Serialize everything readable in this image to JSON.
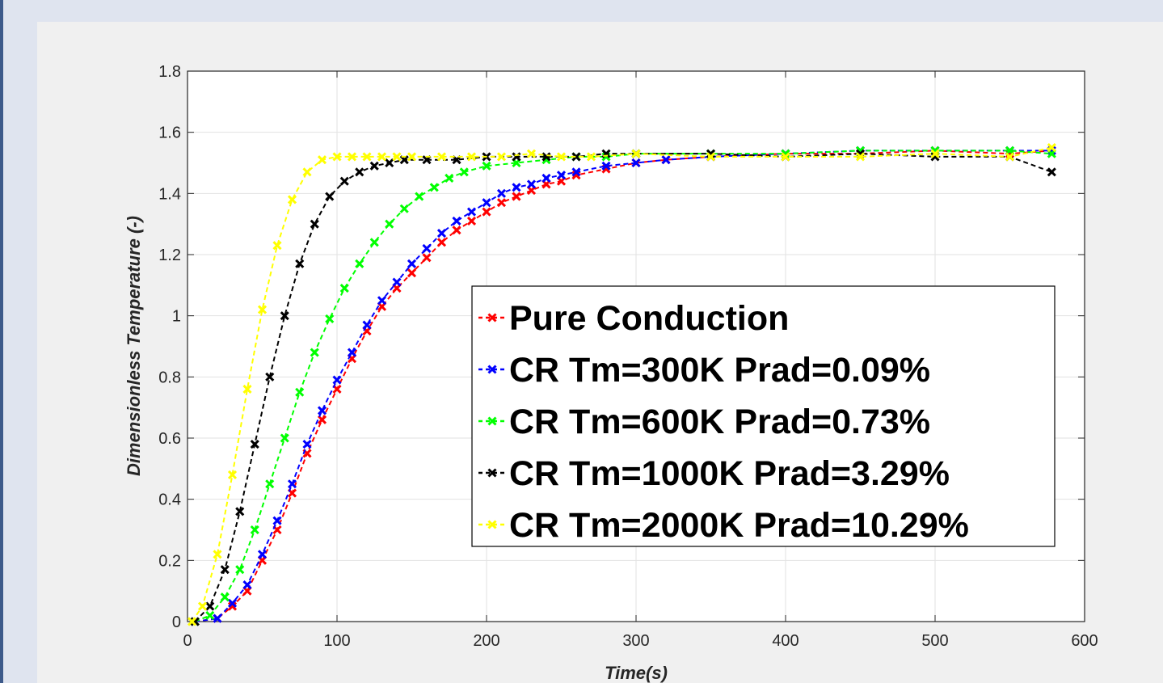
{
  "window": {
    "background": "#dfe4ef",
    "figure_background": "#f0f0f0"
  },
  "chart_data": {
    "type": "scatter",
    "title": "",
    "xlabel": "Time(s)",
    "ylabel": "Dimensionless Temperature (-)",
    "xlim": [
      0,
      600
    ],
    "ylim": [
      0,
      1.8
    ],
    "xticks": [
      "0",
      "100",
      "200",
      "300",
      "400",
      "500",
      "600"
    ],
    "yticks": [
      "0",
      "0.2",
      "0.4",
      "0.6",
      "0.8",
      "1",
      "1.2",
      "1.4",
      "1.6",
      "1.8"
    ],
    "xtick_values": [
      0,
      100,
      200,
      300,
      400,
      500,
      600
    ],
    "ytick_values": [
      0,
      0.2,
      0.4,
      0.6,
      0.8,
      1,
      1.2,
      1.4,
      1.6,
      1.8
    ],
    "grid": true,
    "legend_position": "lower-right",
    "marker": "x",
    "series": [
      {
        "name": "Pure Conduction",
        "color": "#ff0000",
        "x": [
          5,
          20,
          30,
          40,
          50,
          60,
          70,
          80,
          90,
          100,
          110,
          120,
          130,
          140,
          150,
          160,
          170,
          180,
          190,
          200,
          210,
          220,
          230,
          240,
          250,
          260,
          280,
          300,
          320,
          350,
          400,
          450,
          500,
          550,
          578
        ],
        "y": [
          0,
          0.01,
          0.05,
          0.1,
          0.2,
          0.3,
          0.42,
          0.55,
          0.66,
          0.76,
          0.86,
          0.95,
          1.03,
          1.09,
          1.14,
          1.19,
          1.24,
          1.28,
          1.31,
          1.34,
          1.37,
          1.39,
          1.41,
          1.43,
          1.44,
          1.46,
          1.48,
          1.5,
          1.51,
          1.52,
          1.53,
          1.53,
          1.54,
          1.53,
          1.54
        ]
      },
      {
        "name": "CR Tm=300K Prad=0.09%",
        "color": "#0000ff",
        "x": [
          5,
          20,
          30,
          40,
          50,
          60,
          70,
          80,
          90,
          100,
          110,
          120,
          130,
          140,
          150,
          160,
          170,
          180,
          190,
          200,
          210,
          220,
          230,
          240,
          250,
          260,
          280,
          300,
          320,
          350,
          400,
          450,
          500,
          550,
          578
        ],
        "y": [
          0,
          0.01,
          0.06,
          0.12,
          0.22,
          0.33,
          0.45,
          0.58,
          0.69,
          0.79,
          0.88,
          0.97,
          1.05,
          1.11,
          1.17,
          1.22,
          1.27,
          1.31,
          1.34,
          1.37,
          1.4,
          1.42,
          1.43,
          1.45,
          1.46,
          1.47,
          1.49,
          1.5,
          1.51,
          1.52,
          1.53,
          1.54,
          1.54,
          1.54,
          1.54
        ]
      },
      {
        "name": "CR Tm=600K Prad=0.73%",
        "color": "#00ff00",
        "x": [
          5,
          15,
          25,
          35,
          45,
          55,
          65,
          75,
          85,
          95,
          105,
          115,
          125,
          135,
          145,
          155,
          165,
          175,
          185,
          200,
          220,
          240,
          260,
          280,
          300,
          350,
          400,
          450,
          500,
          550,
          578
        ],
        "y": [
          0,
          0.02,
          0.08,
          0.17,
          0.3,
          0.45,
          0.6,
          0.75,
          0.88,
          0.99,
          1.09,
          1.17,
          1.24,
          1.3,
          1.35,
          1.39,
          1.42,
          1.45,
          1.47,
          1.49,
          1.5,
          1.51,
          1.52,
          1.52,
          1.53,
          1.53,
          1.53,
          1.54,
          1.54,
          1.54,
          1.53
        ]
      },
      {
        "name": "CR Tm=1000K Prad=3.29%",
        "color": "#000000",
        "x": [
          5,
          15,
          25,
          35,
          45,
          55,
          65,
          75,
          85,
          95,
          105,
          115,
          125,
          135,
          145,
          160,
          180,
          200,
          220,
          240,
          260,
          280,
          300,
          350,
          400,
          450,
          500,
          550,
          578
        ],
        "y": [
          0,
          0.05,
          0.17,
          0.36,
          0.58,
          0.8,
          1.0,
          1.17,
          1.3,
          1.39,
          1.44,
          1.47,
          1.49,
          1.5,
          1.51,
          1.51,
          1.51,
          1.52,
          1.52,
          1.52,
          1.52,
          1.53,
          1.53,
          1.53,
          1.52,
          1.53,
          1.52,
          1.52,
          1.47
        ]
      },
      {
        "name": "CR Tm=2000K Prad=10.29%",
        "color": "#ffff00",
        "x": [
          3,
          10,
          20,
          30,
          40,
          50,
          60,
          70,
          80,
          90,
          100,
          110,
          120,
          130,
          140,
          150,
          170,
          190,
          210,
          230,
          250,
          270,
          300,
          350,
          400,
          450,
          500,
          550,
          578
        ],
        "y": [
          0,
          0.05,
          0.22,
          0.48,
          0.76,
          1.02,
          1.23,
          1.38,
          1.47,
          1.51,
          1.52,
          1.52,
          1.52,
          1.52,
          1.52,
          1.52,
          1.52,
          1.52,
          1.52,
          1.53,
          1.52,
          1.52,
          1.53,
          1.52,
          1.52,
          1.52,
          1.53,
          1.52,
          1.55
        ]
      }
    ]
  }
}
